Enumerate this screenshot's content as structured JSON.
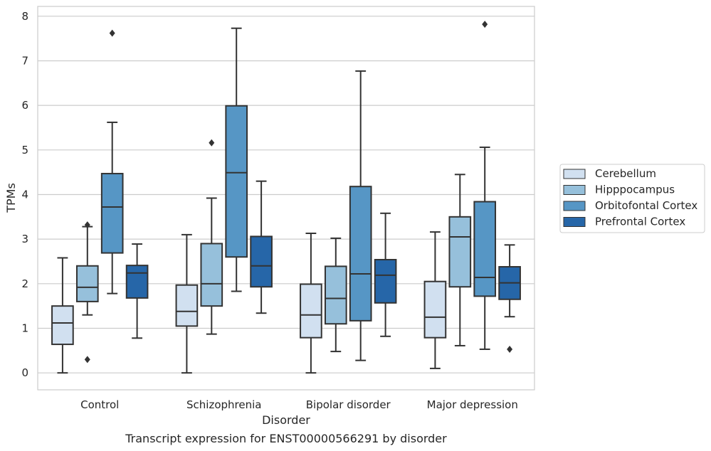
{
  "caption": "Transcript expression for ENST00000566291 by disorder",
  "chart_data": {
    "type": "boxplot",
    "title": "",
    "xlabel": "Disorder",
    "ylabel": "TPMs",
    "ylim": [
      -0.38,
      8.22
    ],
    "yticks": [
      0,
      1,
      2,
      3,
      4,
      5,
      6,
      7,
      8
    ],
    "grid": true,
    "legend_position": "right",
    "categories": [
      "Control",
      "Schizophrenia",
      "Bipolar disorder",
      "Major depression"
    ],
    "series": [
      {
        "name": "Cerebellum",
        "color": "#d1e0f0",
        "boxes": [
          {
            "whislo": 0.0,
            "q1": 0.64,
            "med": 1.12,
            "q3": 1.5,
            "whishi": 2.58,
            "fliers": []
          },
          {
            "whislo": 0.0,
            "q1": 1.05,
            "med": 1.38,
            "q3": 1.97,
            "whishi": 3.1,
            "fliers": []
          },
          {
            "whislo": 0.0,
            "q1": 0.79,
            "med": 1.3,
            "q3": 1.99,
            "whishi": 3.13,
            "fliers": []
          },
          {
            "whislo": 0.1,
            "q1": 0.79,
            "med": 1.25,
            "q3": 2.05,
            "whishi": 3.16,
            "fliers": []
          }
        ]
      },
      {
        "name": "Hipppocampus",
        "color": "#96c0db",
        "boxes": [
          {
            "whislo": 1.3,
            "q1": 1.6,
            "med": 1.92,
            "q3": 2.4,
            "whishi": 3.28,
            "fliers": [
              0.3,
              3.32
            ]
          },
          {
            "whislo": 0.87,
            "q1": 1.5,
            "med": 2.0,
            "q3": 2.9,
            "whishi": 3.92,
            "fliers": [
              5.16
            ]
          },
          {
            "whislo": 0.48,
            "q1": 1.1,
            "med": 1.67,
            "q3": 2.39,
            "whishi": 3.02,
            "fliers": []
          },
          {
            "whislo": 0.61,
            "q1": 1.93,
            "med": 3.05,
            "q3": 3.5,
            "whishi": 4.45,
            "fliers": []
          }
        ]
      },
      {
        "name": "Orbitofontal Cortex",
        "color": "#5696c5",
        "boxes": [
          {
            "whislo": 1.78,
            "q1": 2.69,
            "med": 3.72,
            "q3": 4.47,
            "whishi": 5.62,
            "fliers": [
              7.62
            ]
          },
          {
            "whislo": 1.83,
            "q1": 2.6,
            "med": 4.49,
            "q3": 5.99,
            "whishi": 7.73,
            "fliers": []
          },
          {
            "whislo": 0.28,
            "q1": 1.17,
            "med": 2.22,
            "q3": 4.18,
            "whishi": 6.77,
            "fliers": []
          },
          {
            "whislo": 0.53,
            "q1": 1.72,
            "med": 2.14,
            "q3": 3.84,
            "whishi": 5.06,
            "fliers": [
              7.82
            ]
          }
        ]
      },
      {
        "name": "Prefrontal Cortex",
        "color": "#2666a8",
        "boxes": [
          {
            "whislo": 0.78,
            "q1": 1.68,
            "med": 2.24,
            "q3": 2.41,
            "whishi": 2.89,
            "fliers": []
          },
          {
            "whislo": 1.34,
            "q1": 1.93,
            "med": 2.4,
            "q3": 3.06,
            "whishi": 4.3,
            "fliers": []
          },
          {
            "whislo": 0.82,
            "q1": 1.57,
            "med": 2.19,
            "q3": 2.54,
            "whishi": 3.58,
            "fliers": []
          },
          {
            "whislo": 1.26,
            "q1": 1.65,
            "med": 2.02,
            "q3": 2.38,
            "whishi": 2.87,
            "fliers": [
              0.53
            ]
          }
        ]
      }
    ]
  }
}
